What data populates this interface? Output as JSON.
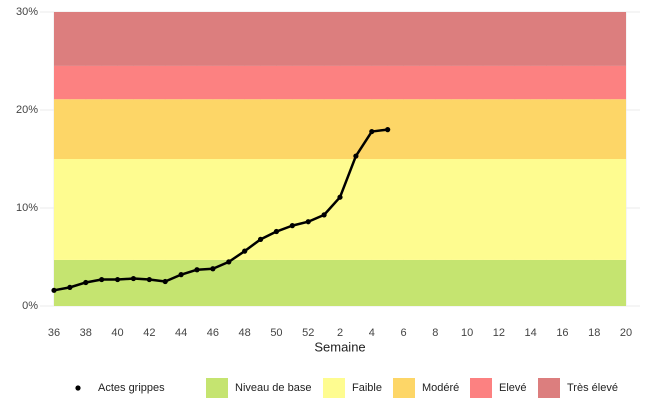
{
  "chart_data": {
    "type": "line",
    "xlabel": "Semaine",
    "categories": [
      "36",
      null,
      "38",
      null,
      "40",
      null,
      "42",
      null,
      "44",
      null,
      "46",
      null,
      "48",
      null,
      "50",
      null,
      "52",
      null,
      "2",
      null,
      "4",
      null,
      "6",
      null,
      "8",
      null,
      "10",
      null,
      "12",
      null,
      "14",
      null,
      "16",
      null,
      "18",
      null,
      "20"
    ],
    "series": [
      {
        "name": "Actes grippes",
        "color": "#000000",
        "values": [
          1.6,
          1.9,
          2.4,
          2.7,
          2.7,
          2.8,
          2.7,
          2.5,
          3.2,
          3.7,
          3.8,
          4.5,
          5.6,
          6.8,
          7.6,
          8.2,
          8.6,
          9.3,
          11.1,
          15.3,
          17.8,
          18.0,
          null,
          null,
          null,
          null,
          null,
          null,
          null,
          null,
          null,
          null,
          null,
          null,
          null,
          null,
          null
        ]
      }
    ],
    "bands": [
      {
        "name": "Niveau de base",
        "color": "#c5e470",
        "from": 0,
        "to": 4.7
      },
      {
        "name": "Faible",
        "color": "#fefc90",
        "from": 4.7,
        "to": 15
      },
      {
        "name": "Modéré",
        "color": "#fdd667",
        "from": 15,
        "to": 21.1
      },
      {
        "name": "Elevé",
        "color": "#fc8181",
        "from": 21.1,
        "to": 24.5
      },
      {
        "name": "Très élevé",
        "color": "#dc7e7e",
        "from": 24.5,
        "to": 30
      }
    ],
    "ylim": [
      0,
      30
    ],
    "yticks": [
      {
        "value": 0,
        "label": "0%"
      },
      {
        "value": 10,
        "label": "10%"
      },
      {
        "value": 20,
        "label": "20%"
      },
      {
        "value": 30,
        "label": "30%"
      }
    ],
    "grid": true
  }
}
